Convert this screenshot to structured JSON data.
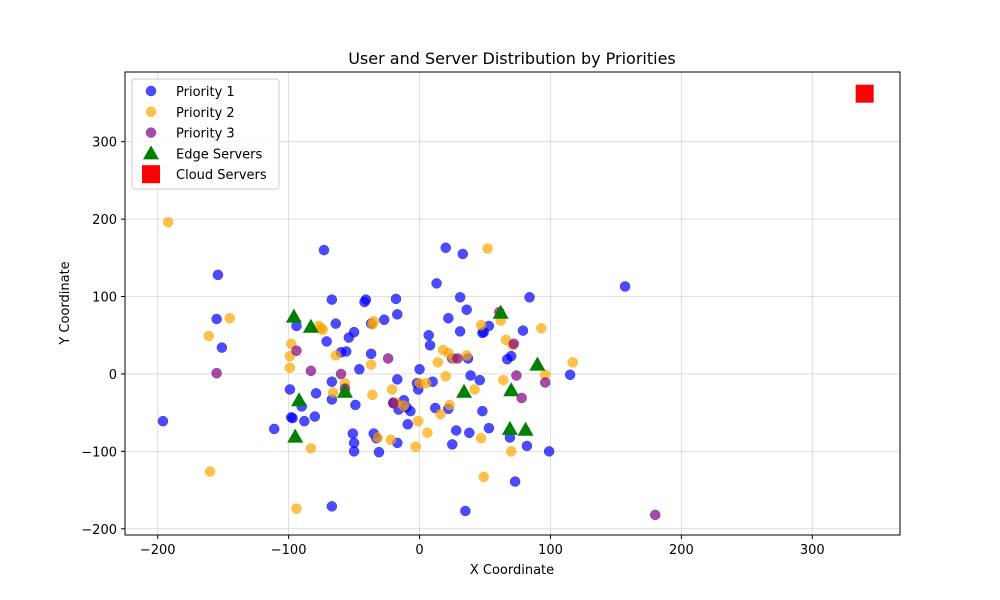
{
  "chart_data": {
    "type": "scatter",
    "title": "User and Server Distribution by Priorities",
    "xlabel": "X Coordinate",
    "ylabel": "Y Coordinate",
    "xlim": [
      -225,
      367
    ],
    "ylim": [
      -208,
      390
    ],
    "xticks": [
      -200,
      -100,
      0,
      100,
      200,
      300
    ],
    "yticks": [
      -200,
      -100,
      0,
      100,
      200,
      300
    ],
    "grid": true,
    "legend_position": "top-left",
    "series": [
      {
        "name": "Priority 1",
        "marker": "circle",
        "color": "#0000ff",
        "points": [
          [
            -196,
            -61
          ],
          [
            -154,
            128
          ],
          [
            -155,
            71
          ],
          [
            -151,
            34
          ],
          [
            -111,
            -71
          ],
          [
            -99,
            -20
          ],
          [
            -98,
            -56
          ],
          [
            -97,
            -57
          ],
          [
            -94,
            62
          ],
          [
            -90,
            -42
          ],
          [
            -88,
            -61
          ],
          [
            -80,
            -55
          ],
          [
            -79,
            -25
          ],
          [
            -73,
            160
          ],
          [
            -71,
            42
          ],
          [
            -67,
            96
          ],
          [
            -67,
            -10
          ],
          [
            -67,
            -33
          ],
          [
            -67,
            -171
          ],
          [
            -64,
            65
          ],
          [
            -60,
            28
          ],
          [
            -56,
            29
          ],
          [
            -54,
            47
          ],
          [
            -51,
            -77
          ],
          [
            -50,
            -89
          ],
          [
            -50,
            -100
          ],
          [
            -50,
            54
          ],
          [
            -49,
            -40
          ],
          [
            -46,
            6
          ],
          [
            -42,
            93
          ],
          [
            -41,
            96
          ],
          [
            -37,
            26
          ],
          [
            -37,
            65
          ],
          [
            -35,
            -77
          ],
          [
            -33,
            -83
          ],
          [
            -31,
            -101
          ],
          [
            -27,
            70
          ],
          [
            -20,
            -37
          ],
          [
            -18,
            97
          ],
          [
            -17,
            77
          ],
          [
            -17,
            -7
          ],
          [
            -17,
            -89
          ],
          [
            -16,
            -46
          ],
          [
            -12,
            -34
          ],
          [
            -10,
            -43
          ],
          [
            -9,
            -65
          ],
          [
            -7,
            -48
          ],
          [
            -2,
            -12
          ],
          [
            -1,
            -20
          ],
          [
            0,
            6
          ],
          [
            7,
            50
          ],
          [
            8,
            37
          ],
          [
            10,
            -10
          ],
          [
            12,
            -44
          ],
          [
            13,
            117
          ],
          [
            20,
            163
          ],
          [
            22,
            -45
          ],
          [
            22,
            72
          ],
          [
            25,
            20
          ],
          [
            25,
            -91
          ],
          [
            28,
            -73
          ],
          [
            31,
            99
          ],
          [
            31,
            55
          ],
          [
            33,
            155
          ],
          [
            35,
            -177
          ],
          [
            36,
            83
          ],
          [
            37,
            20
          ],
          [
            38,
            -76
          ],
          [
            39,
            -2
          ],
          [
            46,
            -8
          ],
          [
            48,
            53
          ],
          [
            48,
            -48
          ],
          [
            49,
            54
          ],
          [
            53,
            -70
          ],
          [
            53,
            62
          ],
          [
            67,
            19
          ],
          [
            69,
            -82
          ],
          [
            70,
            23
          ],
          [
            73,
            -139
          ],
          [
            79,
            56
          ],
          [
            82,
            -93
          ],
          [
            84,
            99
          ],
          [
            115,
            -1
          ],
          [
            157,
            113
          ],
          [
            99,
            -100
          ]
        ]
      },
      {
        "name": "Priority 2",
        "marker": "circle",
        "color": "#ffa500",
        "points": [
          [
            -192,
            196
          ],
          [
            -160,
            -126
          ],
          [
            -161,
            49
          ],
          [
            -145,
            72
          ],
          [
            -98,
            39
          ],
          [
            -99,
            23
          ],
          [
            -99,
            8
          ],
          [
            -94,
            -174
          ],
          [
            -83,
            -96
          ],
          [
            -77,
            62
          ],
          [
            -75,
            59
          ],
          [
            -74,
            57
          ],
          [
            -66,
            -24
          ],
          [
            -64,
            24
          ],
          [
            -57,
            -12
          ],
          [
            -57,
            -24
          ],
          [
            -37,
            12
          ],
          [
            -36,
            -27
          ],
          [
            -35,
            68
          ],
          [
            -36,
            64
          ],
          [
            -32,
            -82
          ],
          [
            -22,
            -85
          ],
          [
            -21,
            -20
          ],
          [
            -18,
            -37
          ],
          [
            -12,
            -41
          ],
          [
            -3,
            -94
          ],
          [
            -1,
            -61
          ],
          [
            0,
            -12
          ],
          [
            6,
            -76
          ],
          [
            5,
            -12
          ],
          [
            14,
            15
          ],
          [
            16,
            -52
          ],
          [
            18,
            31
          ],
          [
            20,
            -3
          ],
          [
            22,
            27
          ],
          [
            23,
            -40
          ],
          [
            26,
            20
          ],
          [
            36,
            24
          ],
          [
            42,
            -20
          ],
          [
            47,
            63
          ],
          [
            47,
            -83
          ],
          [
            49,
            -133
          ],
          [
            52,
            162
          ],
          [
            62,
            69
          ],
          [
            64,
            -8
          ],
          [
            66,
            44
          ],
          [
            70,
            -100
          ],
          [
            71,
            37
          ],
          [
            93,
            59
          ],
          [
            96,
            -1
          ],
          [
            117,
            15
          ]
        ]
      },
      {
        "name": "Priority 3",
        "marker": "circle",
        "color": "#800080",
        "points": [
          [
            -155,
            1
          ],
          [
            -94,
            30
          ],
          [
            -83,
            4
          ],
          [
            -60,
            0
          ],
          [
            -57,
            -19
          ],
          [
            -24,
            20
          ],
          [
            -20,
            -38
          ],
          [
            29,
            20
          ],
          [
            61,
            80
          ],
          [
            72,
            39
          ],
          [
            74,
            -2
          ],
          [
            78,
            -31
          ],
          [
            96,
            -11
          ],
          [
            180,
            -182
          ]
        ]
      },
      {
        "name": "Edge Servers",
        "marker": "triangle",
        "color": "#008000",
        "points": [
          [
            -96,
            74
          ],
          [
            -95,
            -81
          ],
          [
            -92,
            -34
          ],
          [
            -83,
            61
          ],
          [
            -57,
            -23
          ],
          [
            34,
            -23
          ],
          [
            62,
            79
          ],
          [
            69,
            -71
          ],
          [
            70,
            -21
          ],
          [
            81,
            -72
          ],
          [
            90,
            12
          ]
        ]
      },
      {
        "name": "Cloud Servers",
        "marker": "square",
        "color": "#ff0000",
        "points": [
          [
            340,
            362
          ]
        ]
      }
    ]
  }
}
